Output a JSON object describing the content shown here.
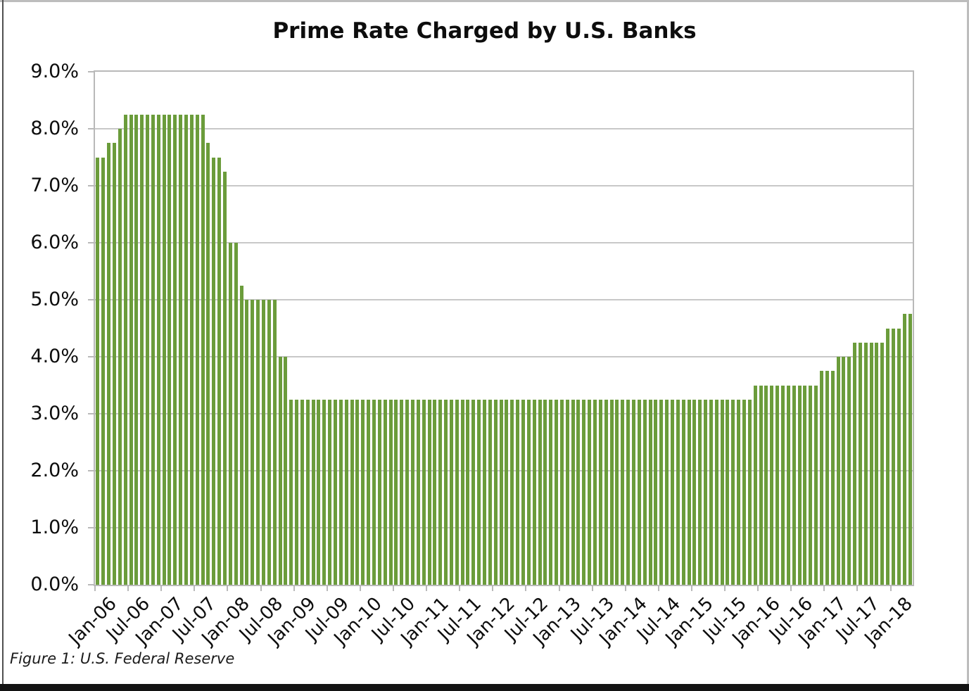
{
  "page": {
    "title": "Prime Rate Charged by U.S. Banks",
    "caption": "Figure 1: U.S. Federal Reserve"
  },
  "chart_data": {
    "type": "bar",
    "title": "Prime Rate Charged by U.S. Banks",
    "xlabel": "",
    "ylabel": "",
    "ylim": [
      0,
      9
    ],
    "grid": "horizontal",
    "legend": "none",
    "bar_color": "#6b9c3b",
    "gridline_color": "#c8c8c8",
    "axis_color": "#b9b9b9",
    "y_tick_labels": [
      "0.0%",
      "1.0%",
      "2.0%",
      "3.0%",
      "4.0%",
      "5.0%",
      "6.0%",
      "7.0%",
      "8.0%",
      "9.0%"
    ],
    "x_tick_every": 6,
    "x_tick_labels": [
      "Jan-06",
      "Jul-06",
      "Jan-07",
      "Jul-07",
      "Jan-08",
      "Jul-08",
      "Jan-09",
      "Jul-09",
      "Jan-10",
      "Jul-10",
      "Jan-11",
      "Jul-11",
      "Jan-12",
      "Jul-12",
      "Jan-13",
      "Jul-13",
      "Jan-14",
      "Jul-14",
      "Jan-15",
      "Jul-15",
      "Jan-16",
      "Jul-16",
      "Jan-17",
      "Jul-17",
      "Jan-18"
    ],
    "x": [
      "Jan-06",
      "Feb-06",
      "Mar-06",
      "Apr-06",
      "May-06",
      "Jun-06",
      "Jul-06",
      "Aug-06",
      "Sep-06",
      "Oct-06",
      "Nov-06",
      "Dec-06",
      "Jan-07",
      "Feb-07",
      "Mar-07",
      "Apr-07",
      "May-07",
      "Jun-07",
      "Jul-07",
      "Aug-07",
      "Sep-07",
      "Oct-07",
      "Nov-07",
      "Dec-07",
      "Jan-08",
      "Feb-08",
      "Mar-08",
      "Apr-08",
      "May-08",
      "Jun-08",
      "Jul-08",
      "Aug-08",
      "Sep-08",
      "Oct-08",
      "Nov-08",
      "Dec-08",
      "Jan-09",
      "Feb-09",
      "Mar-09",
      "Apr-09",
      "May-09",
      "Jun-09",
      "Jul-09",
      "Aug-09",
      "Sep-09",
      "Oct-09",
      "Nov-09",
      "Dec-09",
      "Jan-10",
      "Feb-10",
      "Mar-10",
      "Apr-10",
      "May-10",
      "Jun-10",
      "Jul-10",
      "Aug-10",
      "Sep-10",
      "Oct-10",
      "Nov-10",
      "Dec-10",
      "Jan-11",
      "Feb-11",
      "Mar-11",
      "Apr-11",
      "May-11",
      "Jun-11",
      "Jul-11",
      "Aug-11",
      "Sep-11",
      "Oct-11",
      "Nov-11",
      "Dec-11",
      "Jan-12",
      "Feb-12",
      "Mar-12",
      "Apr-12",
      "May-12",
      "Jun-12",
      "Jul-12",
      "Aug-12",
      "Sep-12",
      "Oct-12",
      "Nov-12",
      "Dec-12",
      "Jan-13",
      "Feb-13",
      "Mar-13",
      "Apr-13",
      "May-13",
      "Jun-13",
      "Jul-13",
      "Aug-13",
      "Sep-13",
      "Oct-13",
      "Nov-13",
      "Dec-13",
      "Jan-14",
      "Feb-14",
      "Mar-14",
      "Apr-14",
      "May-14",
      "Jun-14",
      "Jul-14",
      "Aug-14",
      "Sep-14",
      "Oct-14",
      "Nov-14",
      "Dec-14",
      "Jan-15",
      "Feb-15",
      "Mar-15",
      "Apr-15",
      "May-15",
      "Jun-15",
      "Jul-15",
      "Aug-15",
      "Sep-15",
      "Oct-15",
      "Nov-15",
      "Dec-15",
      "Jan-16",
      "Feb-16",
      "Mar-16",
      "Apr-16",
      "May-16",
      "Jun-16",
      "Jul-16",
      "Aug-16",
      "Sep-16",
      "Oct-16",
      "Nov-16",
      "Dec-16",
      "Jan-17",
      "Feb-17",
      "Mar-17",
      "Apr-17",
      "May-17",
      "Jun-17",
      "Jul-17",
      "Aug-17",
      "Sep-17",
      "Oct-17",
      "Nov-17",
      "Dec-17",
      "Jan-18",
      "Feb-18",
      "Mar-18",
      "Apr-18"
    ],
    "values": [
      7.5,
      7.5,
      7.75,
      7.75,
      8.0,
      8.25,
      8.25,
      8.25,
      8.25,
      8.25,
      8.25,
      8.25,
      8.25,
      8.25,
      8.25,
      8.25,
      8.25,
      8.25,
      8.25,
      8.25,
      7.75,
      7.5,
      7.5,
      7.25,
      6.0,
      6.0,
      5.25,
      5.0,
      5.0,
      5.0,
      5.0,
      5.0,
      5.0,
      4.0,
      4.0,
      3.25,
      3.25,
      3.25,
      3.25,
      3.25,
      3.25,
      3.25,
      3.25,
      3.25,
      3.25,
      3.25,
      3.25,
      3.25,
      3.25,
      3.25,
      3.25,
      3.25,
      3.25,
      3.25,
      3.25,
      3.25,
      3.25,
      3.25,
      3.25,
      3.25,
      3.25,
      3.25,
      3.25,
      3.25,
      3.25,
      3.25,
      3.25,
      3.25,
      3.25,
      3.25,
      3.25,
      3.25,
      3.25,
      3.25,
      3.25,
      3.25,
      3.25,
      3.25,
      3.25,
      3.25,
      3.25,
      3.25,
      3.25,
      3.25,
      3.25,
      3.25,
      3.25,
      3.25,
      3.25,
      3.25,
      3.25,
      3.25,
      3.25,
      3.25,
      3.25,
      3.25,
      3.25,
      3.25,
      3.25,
      3.25,
      3.25,
      3.25,
      3.25,
      3.25,
      3.25,
      3.25,
      3.25,
      3.25,
      3.25,
      3.25,
      3.25,
      3.25,
      3.25,
      3.25,
      3.25,
      3.25,
      3.25,
      3.25,
      3.25,
      3.5,
      3.5,
      3.5,
      3.5,
      3.5,
      3.5,
      3.5,
      3.5,
      3.5,
      3.5,
      3.5,
      3.5,
      3.75,
      3.75,
      3.75,
      4.0,
      4.0,
      4.0,
      4.25,
      4.25,
      4.25,
      4.25,
      4.25,
      4.25,
      4.5,
      4.5,
      4.5,
      4.75,
      4.75
    ]
  }
}
